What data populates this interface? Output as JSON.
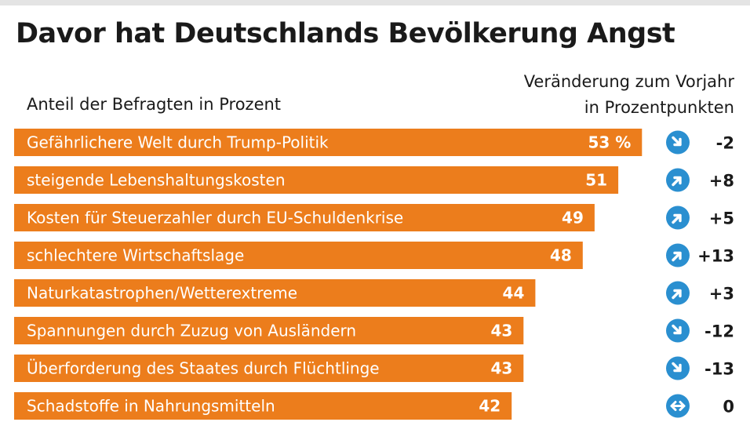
{
  "title": "Davor hat Deutschlands Bevölkerung Angst",
  "subtitle": "Anteil der Befragten in Prozent",
  "change_header": [
    "Veränderung zum Vorjahr",
    "in Prozentpunkten"
  ],
  "colors": {
    "bar": "#ec7d1c",
    "icon": "#2a8fd0",
    "text": "#1a1a1a"
  },
  "chart_data": {
    "type": "bar",
    "orientation": "horizontal",
    "title": "Davor hat Deutschlands Bevölkerung Angst",
    "xlabel": "Anteil der Befragten in Prozent",
    "categories": [
      "Gefährlichere Welt durch Trump-Politik",
      "steigende Lebenshaltungskosten",
      "Kosten für Steuerzahler durch EU-Schuldenkrise",
      "schlechtere Wirtschaftslage",
      "Naturkatastrophen/Wetterextreme",
      "Spannungen durch Zuzug von Ausländern",
      "Überforderung des Staates durch Flüchtlinge",
      "Schadstoffe in Nahrungsmitteln"
    ],
    "values": [
      53,
      51,
      49,
      48,
      44,
      43,
      43,
      42
    ],
    "value_labels": [
      "53 %",
      "51",
      "49",
      "48",
      "44",
      "43",
      "43",
      "42"
    ],
    "change": {
      "label": "Veränderung zum Vorjahr in Prozentpunkten",
      "values": [
        -2,
        8,
        5,
        13,
        3,
        -12,
        -13,
        0
      ],
      "labels": [
        "-2",
        "+8",
        "+5",
        "+13",
        "+3",
        "-12",
        "-13",
        "0"
      ],
      "icons": [
        "arrow-down-right-icon",
        "arrow-up-right-icon",
        "arrow-up-right-icon",
        "arrow-up-right-icon",
        "arrow-up-right-icon",
        "arrow-down-right-icon",
        "arrow-down-right-icon",
        "arrow-left-right-icon"
      ]
    }
  }
}
